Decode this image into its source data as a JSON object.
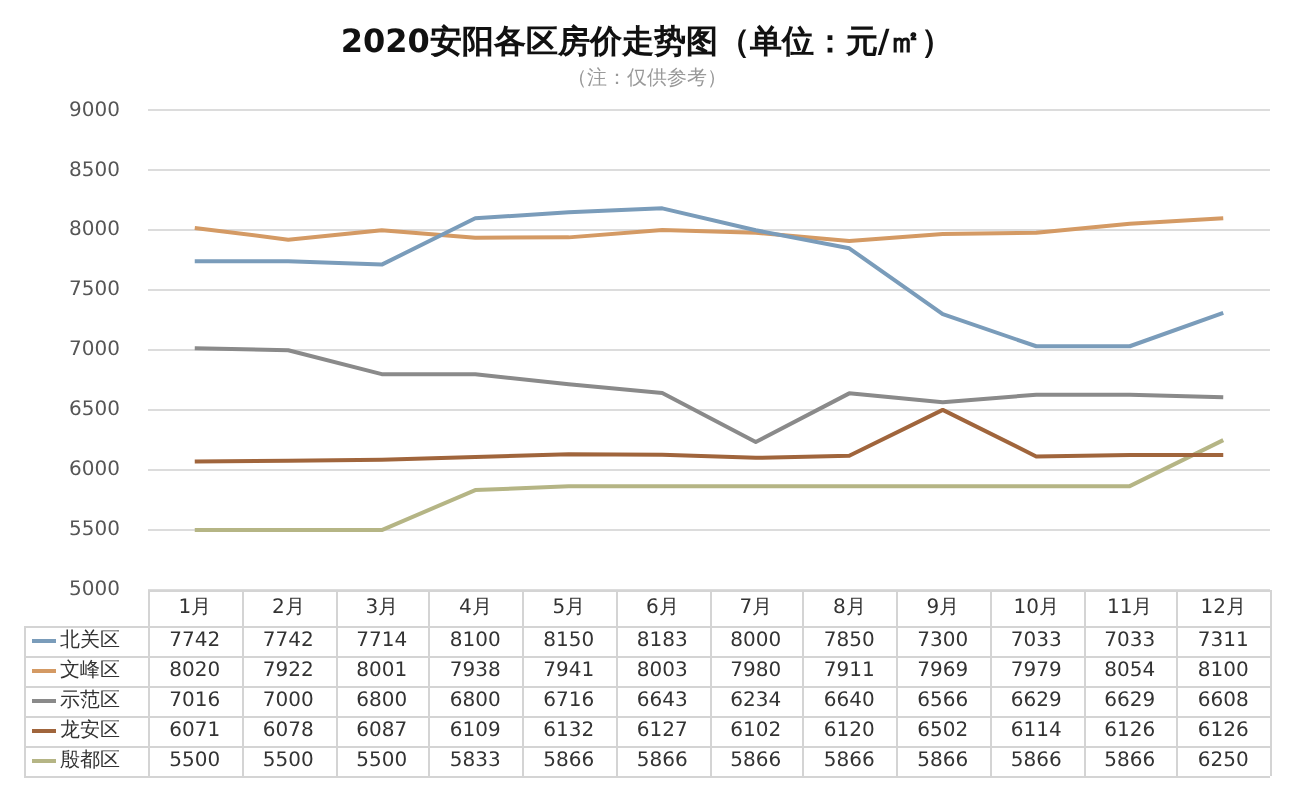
{
  "chart_data": {
    "type": "line",
    "title": "2020安阳各区房价走势图（单位：元/㎡）",
    "subtitle": "（注：仅供参考）",
    "categories": [
      "1月",
      "2月",
      "3月",
      "4月",
      "5月",
      "6月",
      "7月",
      "8月",
      "9月",
      "10月",
      "11月",
      "12月"
    ],
    "series": [
      {
        "name": "北关区",
        "color": "#7a9cba",
        "values": [
          7742,
          7742,
          7714,
          8100,
          8150,
          8183,
          8000,
          7850,
          7300,
          7033,
          7033,
          7311
        ]
      },
      {
        "name": "文峰区",
        "color": "#d49a64",
        "values": [
          8020,
          7922,
          8001,
          7938,
          7941,
          8003,
          7980,
          7911,
          7969,
          7979,
          8054,
          8100
        ]
      },
      {
        "name": "示范区",
        "color": "#8a8a8a",
        "values": [
          7016,
          7000,
          6800,
          6800,
          6716,
          6643,
          6234,
          6640,
          6566,
          6629,
          6629,
          6608
        ]
      },
      {
        "name": "龙安区",
        "color": "#a0653c",
        "values": [
          6071,
          6078,
          6087,
          6109,
          6132,
          6127,
          6102,
          6120,
          6502,
          6114,
          6126,
          6126
        ]
      },
      {
        "name": "殷都区",
        "color": "#b5b585",
        "values": [
          5500,
          5500,
          5500,
          5833,
          5866,
          5866,
          5866,
          5866,
          5866,
          5866,
          5866,
          6250
        ]
      }
    ],
    "ylim": [
      5000,
      9000
    ],
    "yticks": [
      5000,
      5500,
      6000,
      6500,
      7000,
      7500,
      8000,
      8500,
      9000
    ],
    "grid": "y",
    "legend": "bottom",
    "data_labels": true,
    "marker": "none",
    "line_style": "solid"
  }
}
